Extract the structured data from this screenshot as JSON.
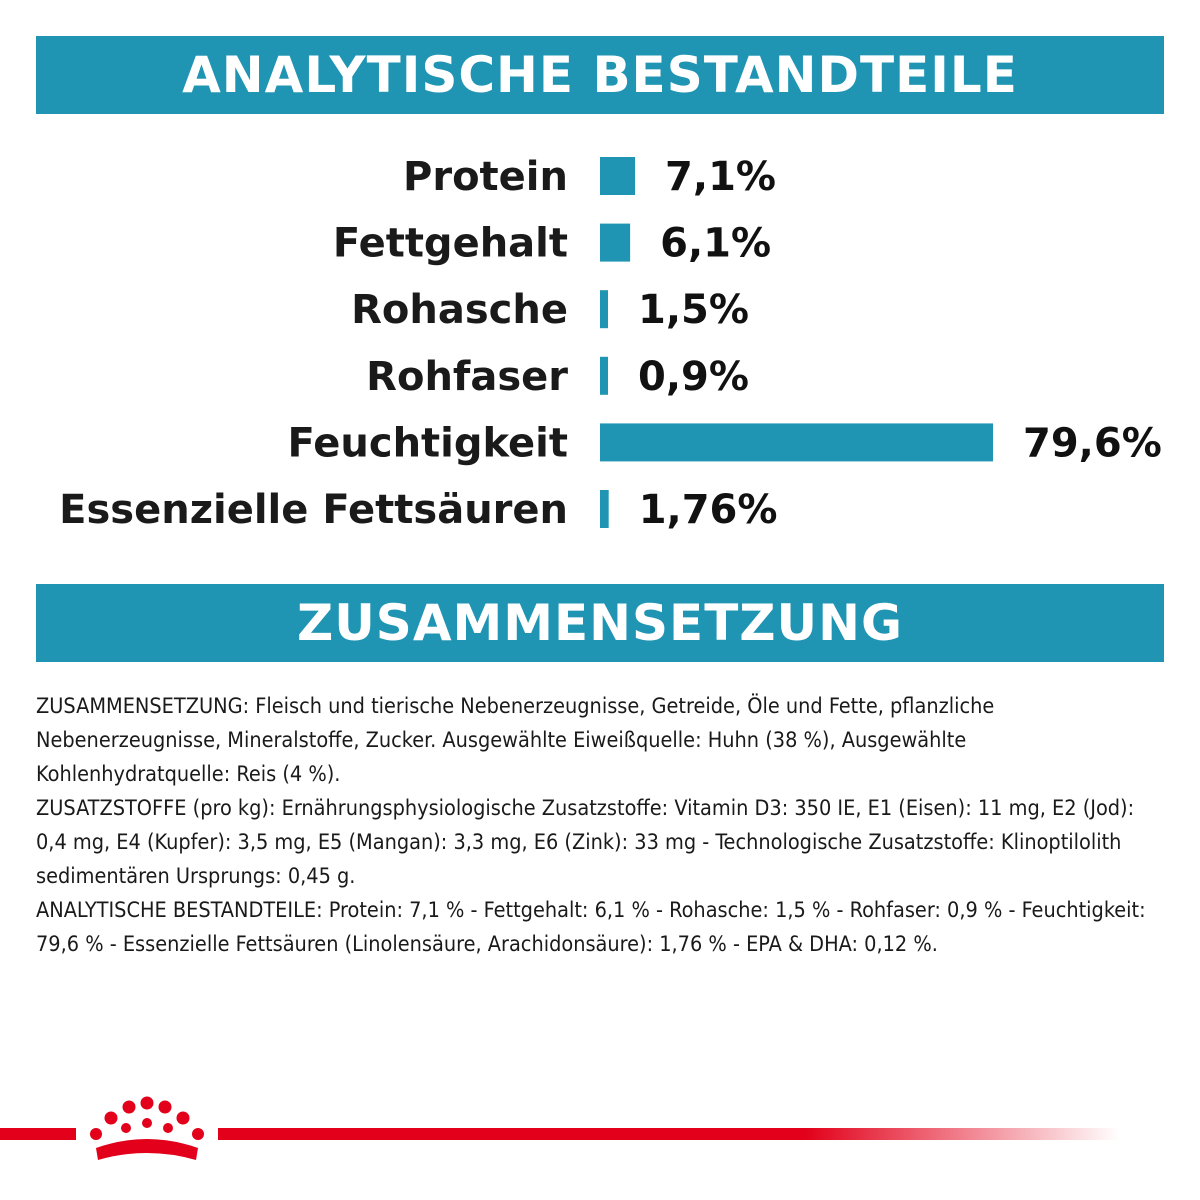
{
  "colors": {
    "banner": "#1f95b3",
    "bar": "#1f95b3",
    "brand_red": "#e2001a"
  },
  "sections": {
    "analytics_title": "ANALYTISCHE BESTANDTEILE",
    "composition_title": "ZUSAMMENSETZUNG"
  },
  "chart_data": {
    "type": "bar",
    "orientation": "horizontal",
    "categories": [
      "Protein",
      "Fettgehalt",
      "Rohasche",
      "Rohfaser",
      "Feuchtigkeit",
      "Essenzielle Fettsäuren"
    ],
    "values": [
      7.1,
      6.1,
      1.5,
      0.9,
      79.6,
      1.76
    ],
    "value_labels": [
      "7,1%",
      "6,1%",
      "1,5%",
      "0,9%",
      "79,6%",
      "1,76%"
    ],
    "unit": "%",
    "xlim": [
      0,
      80
    ],
    "grid": false,
    "legend": "none"
  },
  "composition": {
    "paragraphs": [
      "ZUSAMMENSETZUNG: Fleisch und tierische Nebenerzeugnisse, Getreide, Öle und Fette, pflanzliche Nebenerzeugnisse, Mineralstoffe, Zucker. Ausgewählte Eiweißquelle: Huhn (38 %), Ausgewählte Kohlenhydratquelle: Reis (4 %).",
      "ZUSATZSTOFFE (pro kg): Ernährungsphysiologische Zusatzstoffe: Vitamin D3: 350 IE, E1 (Eisen): 11 mg, E2 (Jod): 0,4 mg, E4 (Kupfer): 3,5 mg, E5 (Mangan): 3,3 mg, E6 (Zink): 33 mg - Technologische Zusatzstoffe: Klinoptilolith sedimentären Ursprungs: 0,45 g.",
      "ANALYTISCHE BESTANDTEILE: Protein: 7,1 % - Fettgehalt: 6,1 % - Rohasche: 1,5 % - Rohfaser: 0,9 % - Feuchtigkeit: 79,6 % - Essenzielle Fettsäuren (Linolensäure, Arachidonsäure): 1,76 % - EPA & DHA: 0,12 %."
    ]
  },
  "footer": {
    "logo_icon": "crown-icon"
  }
}
